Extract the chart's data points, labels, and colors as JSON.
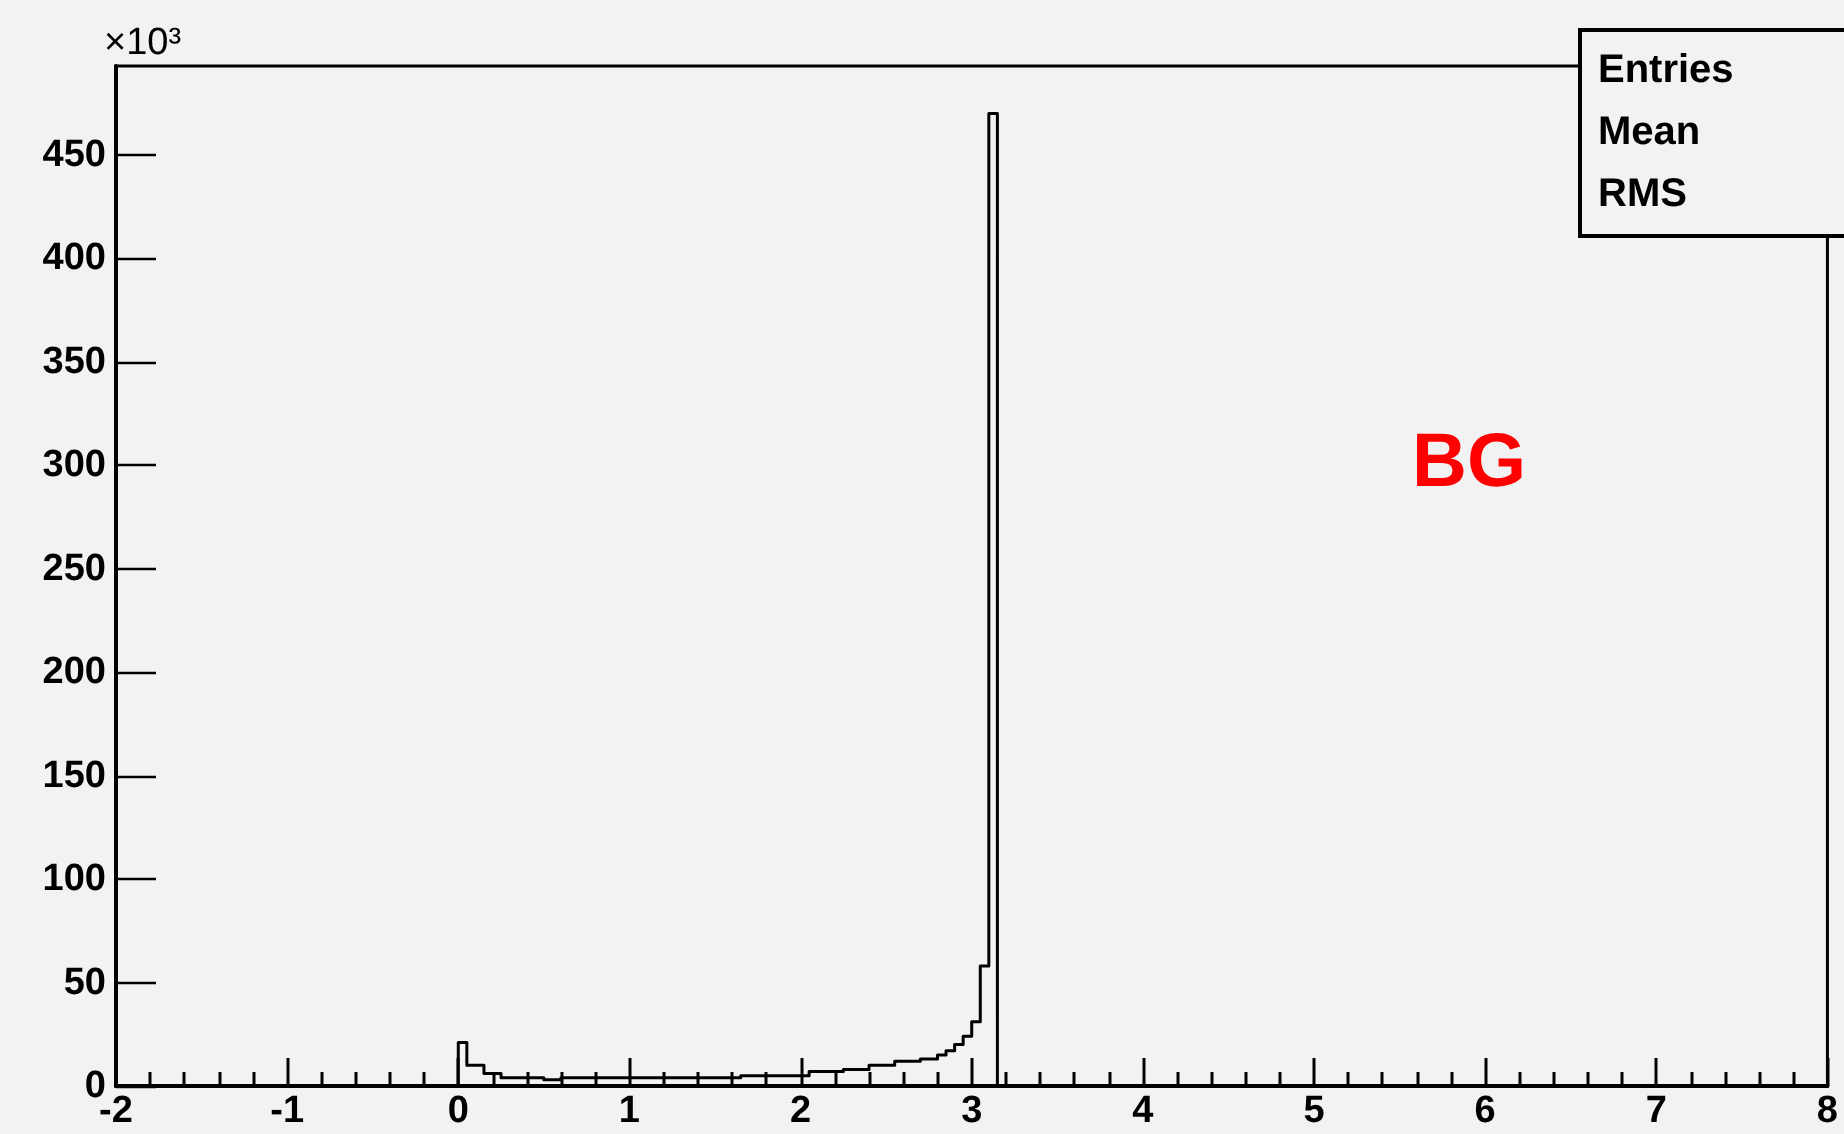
{
  "chart_data": {
    "type": "histogram",
    "ylabel": "×10³",
    "bins": [
      0,
      0.05,
      0.1,
      0.15,
      0.2,
      0.25,
      0.3,
      0.35,
      0.4,
      0.45,
      0.5,
      0.55,
      0.6,
      0.65,
      0.7,
      0.75,
      0.8,
      0.85,
      0.9,
      0.95,
      1,
      1.05,
      1.1,
      1.15,
      1.2,
      1.25,
      1.3,
      1.35,
      1.4,
      1.45,
      1.5,
      1.55,
      1.6,
      1.65,
      1.7,
      1.75,
      1.8,
      1.85,
      1.9,
      1.95,
      2,
      2.05,
      2.1,
      2.15,
      2.2,
      2.25,
      2.3,
      2.35,
      2.4,
      2.45,
      2.5,
      2.55,
      2.6,
      2.65,
      2.7,
      2.75,
      2.8,
      2.85,
      2.9,
      2.95,
      3,
      3.05,
      3.1,
      3.15
    ],
    "values": [
      21,
      10,
      10,
      6,
      6,
      4,
      4,
      4,
      4,
      4,
      3,
      3,
      4,
      4,
      4,
      4,
      4,
      4,
      4,
      4,
      4,
      4,
      4,
      4,
      4,
      4,
      4,
      4,
      4,
      4,
      4,
      4,
      4,
      5,
      5,
      5,
      5,
      5,
      5,
      5,
      5,
      7,
      7,
      7,
      7,
      8,
      8,
      8,
      10,
      10,
      10,
      12,
      12,
      12,
      13,
      13,
      15,
      17,
      20,
      24,
      31,
      58,
      470
    ],
    "color": "#000000",
    "xlim": [
      -2,
      8
    ],
    "xticks": [
      -2,
      -1,
      0,
      1,
      2,
      3,
      4,
      5,
      6,
      7,
      8
    ],
    "ylim": [
      0,
      493
    ],
    "yticks": [
      0,
      50,
      100,
      150,
      200,
      250,
      300,
      350,
      400,
      450
    ],
    "annotations": [
      "BG",
      "Entries",
      "Mean",
      "RMS"
    ]
  }
}
